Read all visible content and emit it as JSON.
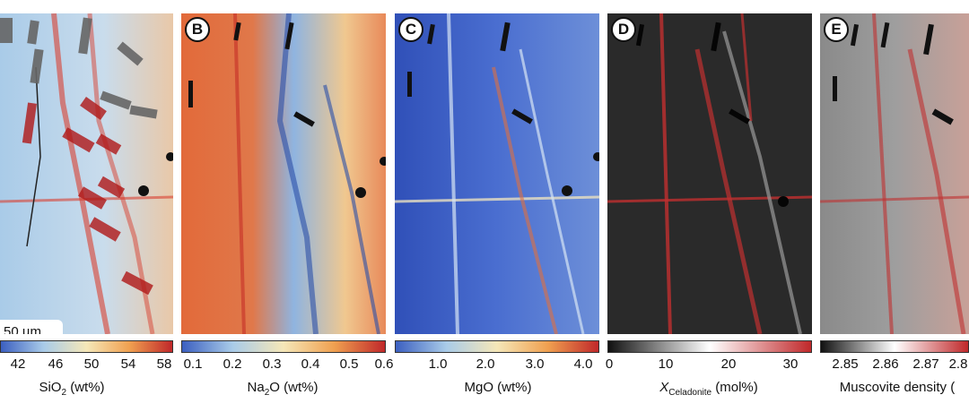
{
  "panels": [
    {
      "id": "A",
      "label": "",
      "colormap": "coolwarm",
      "ticks": [
        "42",
        "46",
        "50",
        "54",
        "58"
      ],
      "unit_main": "SiO",
      "unit_sub": "2",
      "unit_rest": " (wt%)",
      "scale_text": "50 µm"
    },
    {
      "id": "B",
      "label": "B",
      "colormap": "coolwarm",
      "ticks": [
        "0.1",
        "0.2",
        "0.3",
        "0.4",
        "0.5",
        "0.6"
      ],
      "unit_main": "Na",
      "unit_sub": "2",
      "unit_rest": "O (wt%)"
    },
    {
      "id": "C",
      "label": "C",
      "colormap": "coolwarm",
      "ticks": [
        "1.0",
        "2.0",
        "3.0",
        "4.0"
      ],
      "unit_main": "MgO (wt%)",
      "unit_sub": "",
      "unit_rest": ""
    },
    {
      "id": "D",
      "label": "D",
      "colormap": "grayred",
      "ticks": [
        "0",
        "10",
        "20",
        "30"
      ],
      "unit_main": "X",
      "unit_sub": "Celadonite",
      "unit_rest": " (mol%)"
    },
    {
      "id": "E",
      "label": "E",
      "colormap": "grayred",
      "ticks": [
        "2.85",
        "2.86",
        "2.87",
        "2.8"
      ],
      "unit_main": "Muscovite density (",
      "unit_sub": "",
      "unit_rest": ""
    }
  ],
  "colors": {
    "blue": "#3b5fc0",
    "lightblue": "#a9cbe8",
    "cream": "#f5e7b8",
    "orange": "#f0a050",
    "red": "#c0282a",
    "black": "#111111",
    "white": "#ffffff"
  }
}
